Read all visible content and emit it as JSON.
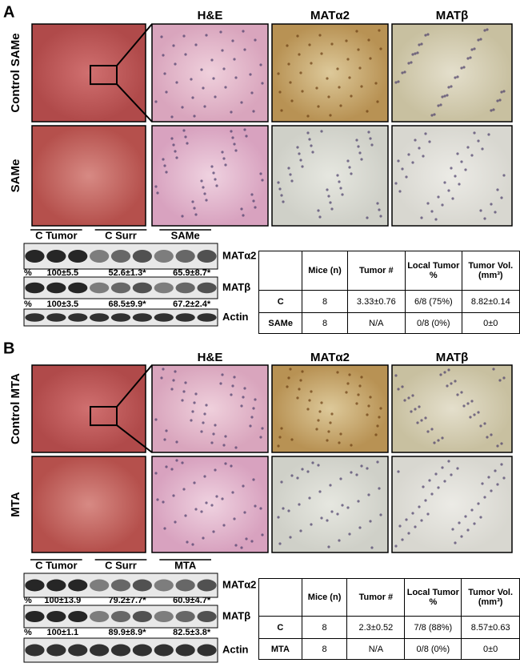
{
  "panels": [
    {
      "label": "A",
      "stain_headers": [
        "H&E",
        "MATα2",
        "MATβ"
      ],
      "row_labels": [
        "Control SAMe",
        "SAMe"
      ],
      "blot": {
        "groups": [
          "C Tumor",
          "C Surr",
          "SAMe"
        ],
        "rows": [
          {
            "name": "MATα2",
            "percent_label": "%",
            "quant": [
              "100±5.5",
              "52.6±1.3*",
              "65.9±8.7*"
            ]
          },
          {
            "name": "MATβ",
            "percent_label": "%",
            "quant": [
              "100±3.5",
              "68.5±9.9*",
              "67.2±2.4*"
            ]
          },
          {
            "name": "Actin"
          }
        ]
      },
      "table": {
        "header": [
          "Mice (n)",
          "Tumor #",
          "Local Tumor %",
          "Tumor Vol. (mm³)"
        ],
        "rows": [
          [
            "C",
            "8",
            "3.33±0.76",
            "6/8 (75%)",
            "8.82±0.14"
          ],
          [
            "SAMe",
            "8",
            "N/A",
            "0/8 (0%)",
            "0±0"
          ]
        ]
      }
    },
    {
      "label": "B",
      "stain_headers": [
        "H&E",
        "MATα2",
        "MATβ"
      ],
      "row_labels": [
        "Control MTA",
        "MTA"
      ],
      "blot": {
        "groups": [
          "C Tumor",
          "C Surr",
          "MTA"
        ],
        "rows": [
          {
            "name": "MATα2",
            "percent_label": "%",
            "quant": [
              "100±13.9",
              "79.2±7.7*",
              "60.9±4.7*"
            ]
          },
          {
            "name": "MATβ",
            "percent_label": "%",
            "quant": [
              "100±1.1",
              "89.9±8.9*",
              "82.5±3.8*"
            ]
          },
          {
            "name": "Actin"
          }
        ]
      },
      "table": {
        "header": [
          "Mice (n)",
          "Tumor #",
          "Local Tumor %",
          "Tumor Vol. (mm³)"
        ],
        "rows": [
          [
            "C",
            "8",
            "2.3±0.52",
            "7/8 (88%)",
            "8.57±0.63"
          ],
          [
            "MTA",
            "8",
            "N/A",
            "0/8 (0%)",
            "0±0"
          ]
        ]
      }
    }
  ]
}
